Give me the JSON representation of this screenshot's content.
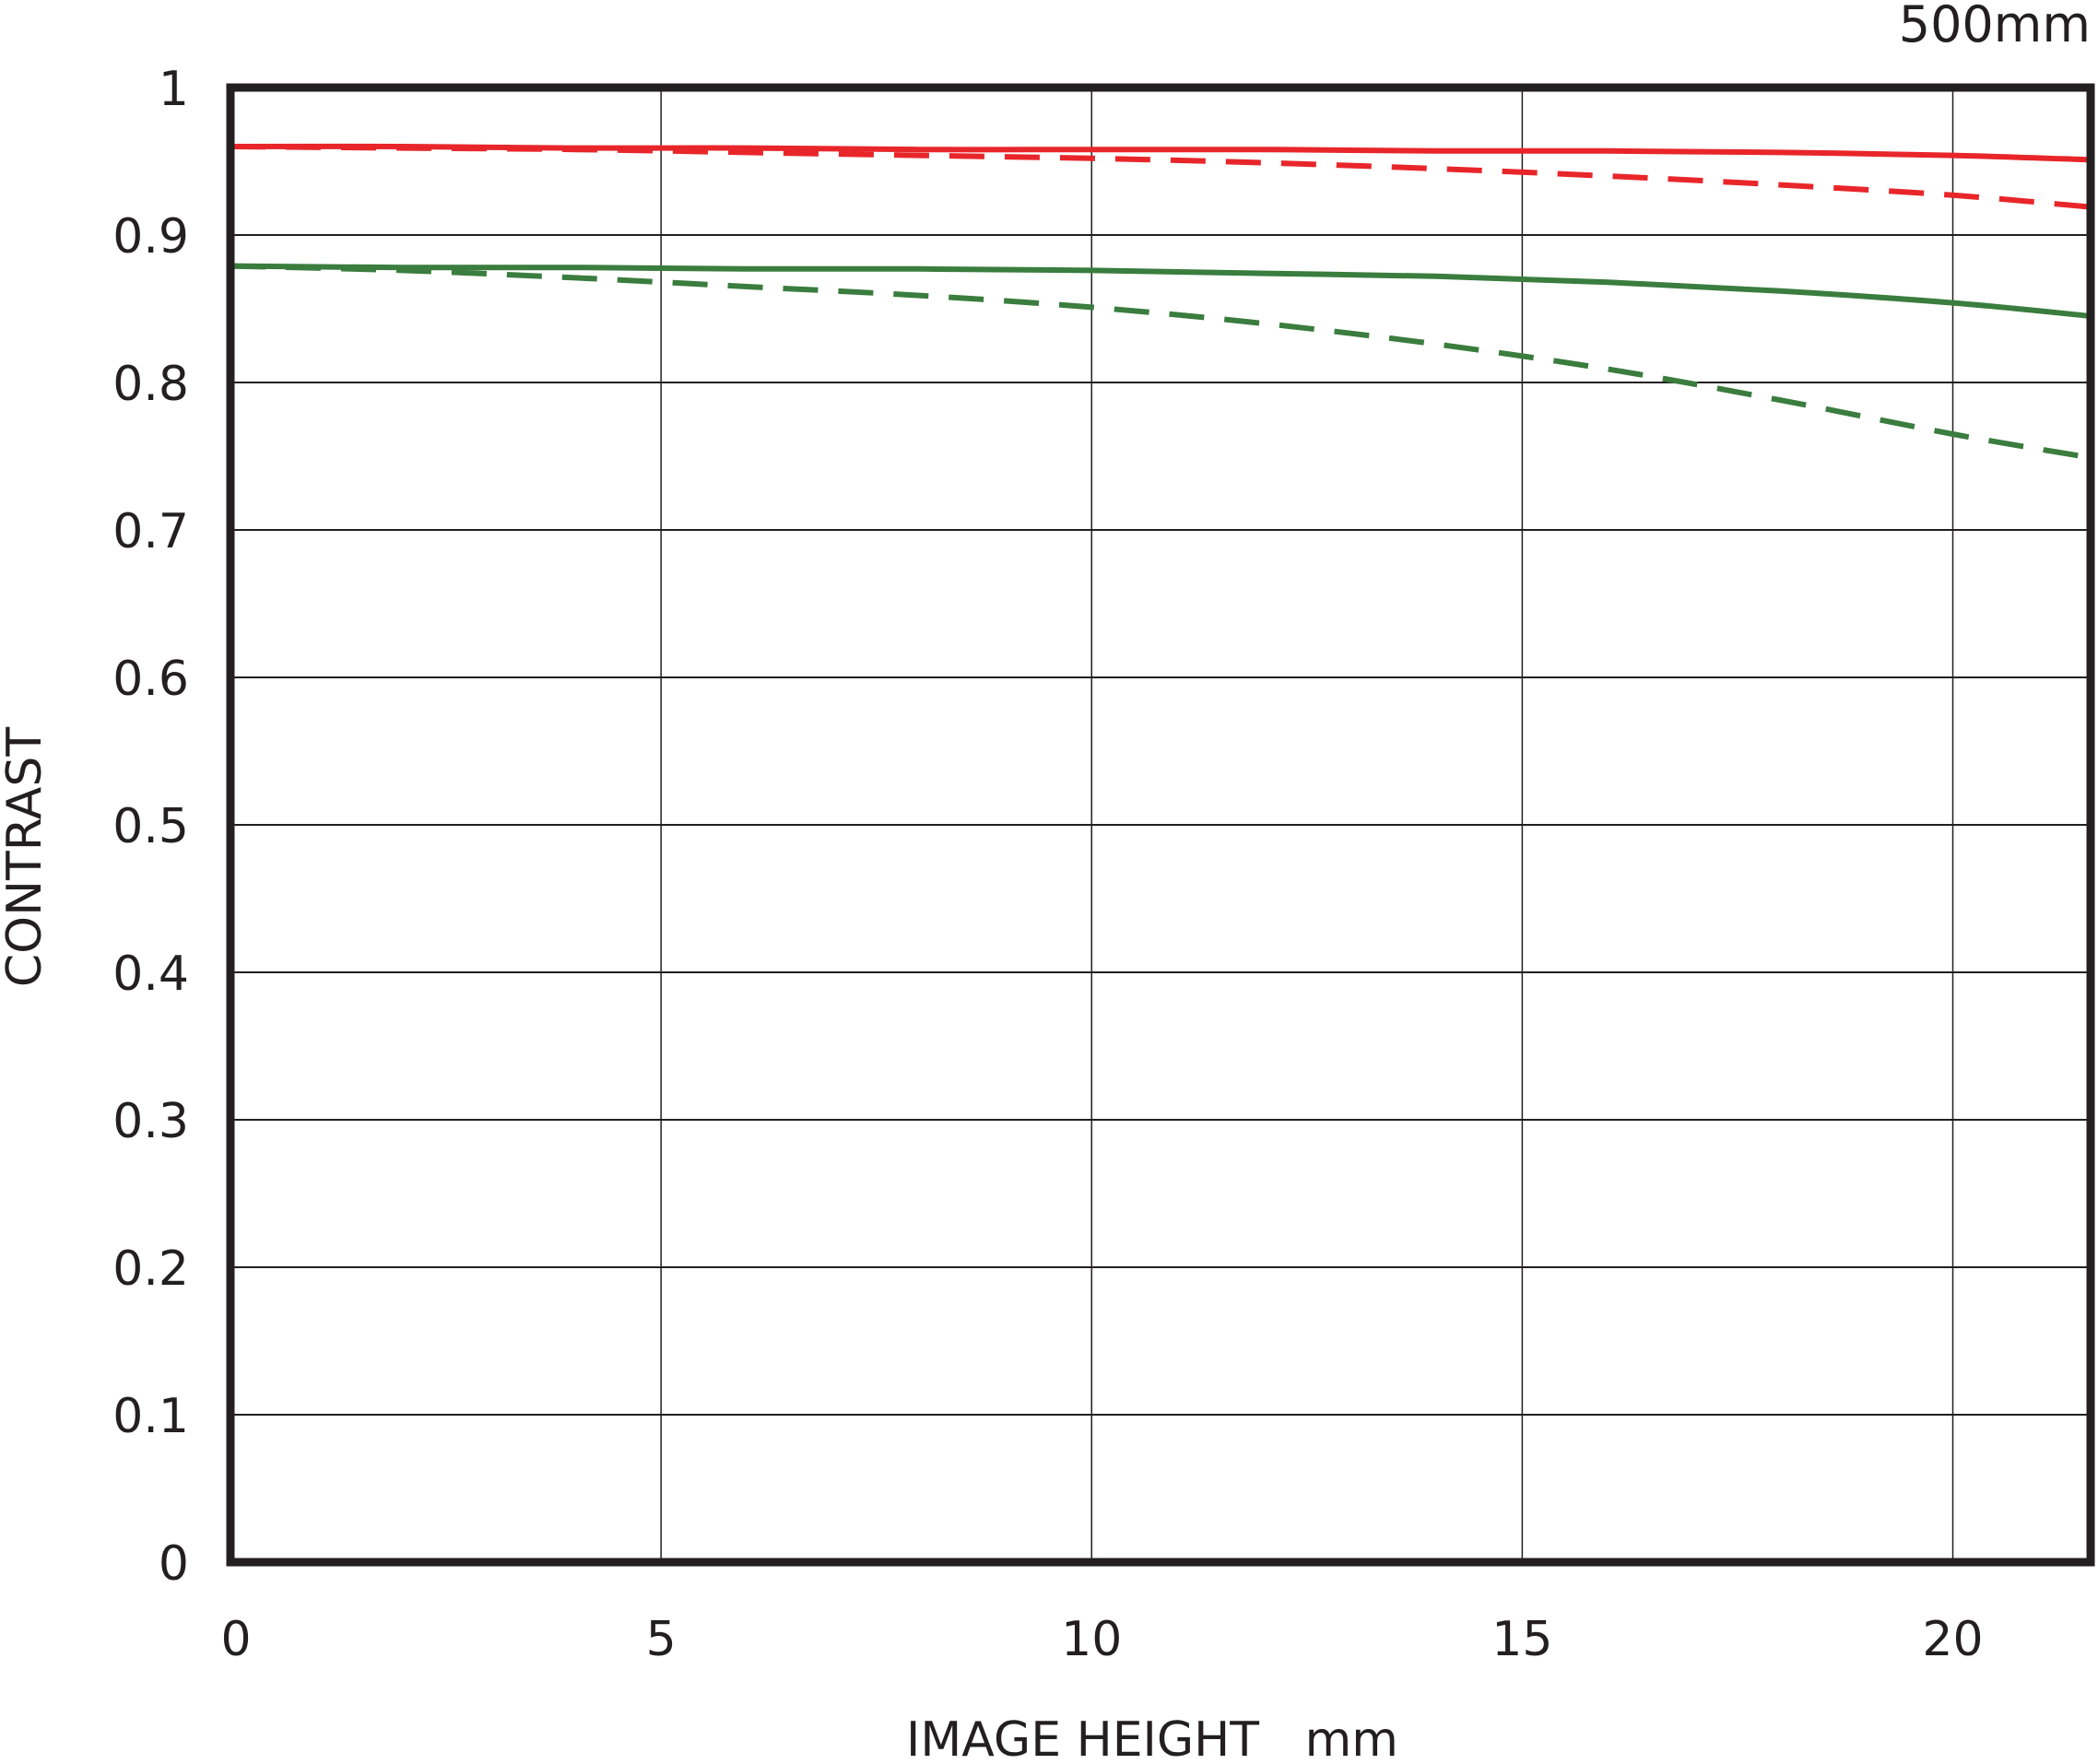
{
  "chart_data": {
    "type": "line",
    "title": "500mm",
    "xlabel": "IMAGE HEIGHT   mm",
    "ylabel": "CONTRAST",
    "xlim": [
      0,
      21.6
    ],
    "ylim": [
      0,
      1
    ],
    "x_ticks": [
      0,
      5,
      10,
      15,
      20
    ],
    "x_tick_labels": [
      "0",
      "5",
      "10",
      "15",
      "20"
    ],
    "y_ticks": [
      0,
      0.1,
      0.2,
      0.3,
      0.4,
      0.5,
      0.6,
      0.7,
      0.8,
      0.9,
      1
    ],
    "y_tick_labels": [
      "0",
      "0.1",
      "0.2",
      "0.3",
      "0.4",
      "0.5",
      "0.6",
      "0.7",
      "0.8",
      "0.9",
      "1"
    ],
    "grid": true,
    "x": [
      0,
      2,
      4,
      6,
      8,
      10,
      12,
      14,
      16,
      18,
      20,
      21.6
    ],
    "series": [
      {
        "color": "#e8262a",
        "dash": "solid",
        "values": [
          0.96,
          0.96,
          0.959,
          0.959,
          0.958,
          0.958,
          0.958,
          0.957,
          0.957,
          0.956,
          0.954,
          0.951
        ]
      },
      {
        "color": "#e8262a",
        "dash": "dashed",
        "values": [
          0.96,
          0.959,
          0.958,
          0.956,
          0.954,
          0.952,
          0.949,
          0.945,
          0.94,
          0.934,
          0.927,
          0.919
        ]
      },
      {
        "color": "#3a7d3e",
        "dash": "solid",
        "values": [
          0.879,
          0.878,
          0.878,
          0.877,
          0.877,
          0.876,
          0.874,
          0.872,
          0.868,
          0.862,
          0.854,
          0.845
        ]
      },
      {
        "color": "#3a7d3e",
        "dash": "dashed",
        "values": [
          0.879,
          0.876,
          0.871,
          0.865,
          0.859,
          0.851,
          0.84,
          0.826,
          0.809,
          0.788,
          0.765,
          0.749
        ]
      }
    ]
  }
}
